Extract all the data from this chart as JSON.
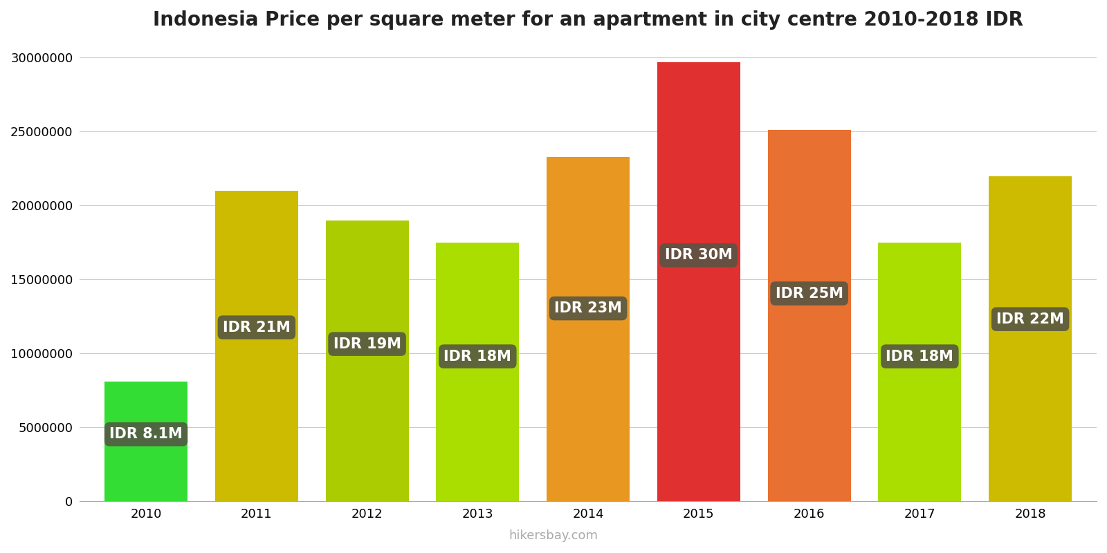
{
  "title": "Indonesia Price per square meter for an apartment in city centre 2010-2018 IDR",
  "years": [
    2010,
    2011,
    2012,
    2013,
    2014,
    2015,
    2016,
    2017,
    2018
  ],
  "values": [
    8100000,
    21000000,
    19000000,
    17500000,
    23300000,
    29700000,
    25100000,
    17500000,
    22000000
  ],
  "labels": [
    "IDR 8.1M",
    "IDR 21M",
    "IDR 19M",
    "IDR 18M",
    "IDR 23M",
    "IDR 30M",
    "IDR 25M",
    "IDR 18M",
    "IDR 22M"
  ],
  "bar_colors": [
    "#33dd33",
    "#ccbb00",
    "#aacc00",
    "#aadd00",
    "#e89820",
    "#e03030",
    "#e87030",
    "#aadd00",
    "#ccbb00"
  ],
  "ylim": [
    0,
    31000000
  ],
  "yticks": [
    0,
    5000000,
    10000000,
    15000000,
    20000000,
    25000000,
    30000000
  ],
  "label_bg_color": "#555544",
  "label_text_color": "#ffffff",
  "watermark": "hikersbay.com",
  "background_color": "#ffffff",
  "title_fontsize": 20,
  "axis_fontsize": 13,
  "label_fontsize": 15,
  "watermark_fontsize": 13,
  "bar_width": 0.75
}
